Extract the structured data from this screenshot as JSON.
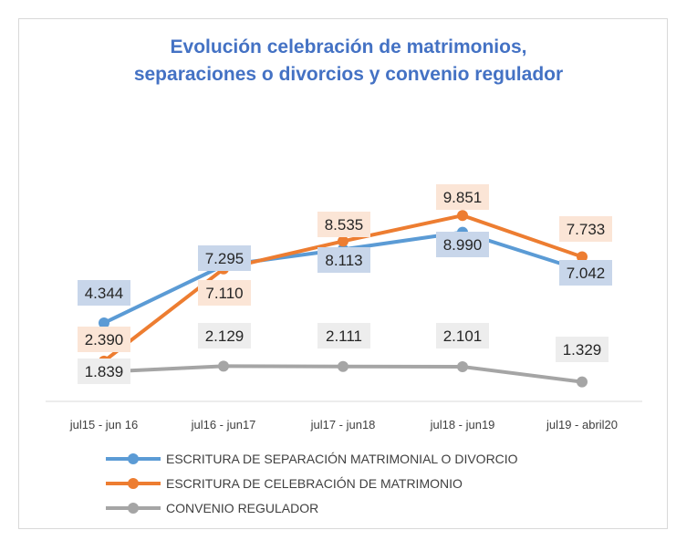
{
  "chart_data": {
    "type": "line",
    "title_lines": [
      "Evolución celebración de matrimonios,",
      "separaciones o divorcios y convenio regulador"
    ],
    "categories": [
      "jul15 - jun 16",
      "jul16 - jun17",
      "jul17 - jun18",
      "jul18 - jun19",
      "jul19 - abril20"
    ],
    "series": [
      {
        "name": "ESCRITURA DE SEPARACIÓN MATRIMONIAL O DIVORCIO",
        "color": "#5b9bd5",
        "label_bg": "#c8d6ea",
        "values": [
          4344,
          7295,
          8113,
          8990,
          7042
        ],
        "labels": [
          "4.344",
          "7.295",
          "8.113",
          "8.990",
          "7.042"
        ]
      },
      {
        "name": "ESCRITURA DE CELEBRACIÓN DE MATRIMONIO",
        "color": "#ed7d31",
        "label_bg": "#fbe5d6",
        "values": [
          2390,
          7110,
          8535,
          9851,
          7733
        ],
        "labels": [
          "2.390",
          "7.110",
          "8.535",
          "9.851",
          "7.733"
        ]
      },
      {
        "name": "CONVENIO REGULADOR",
        "color": "#a5a5a5",
        "label_bg": "#ededed",
        "values": [
          1839,
          2129,
          2111,
          2101,
          1329
        ],
        "labels": [
          "1.839",
          "2.129",
          "2.111",
          "2.101",
          "1.329"
        ]
      }
    ],
    "grid": false,
    "legend_position": "bottom"
  }
}
